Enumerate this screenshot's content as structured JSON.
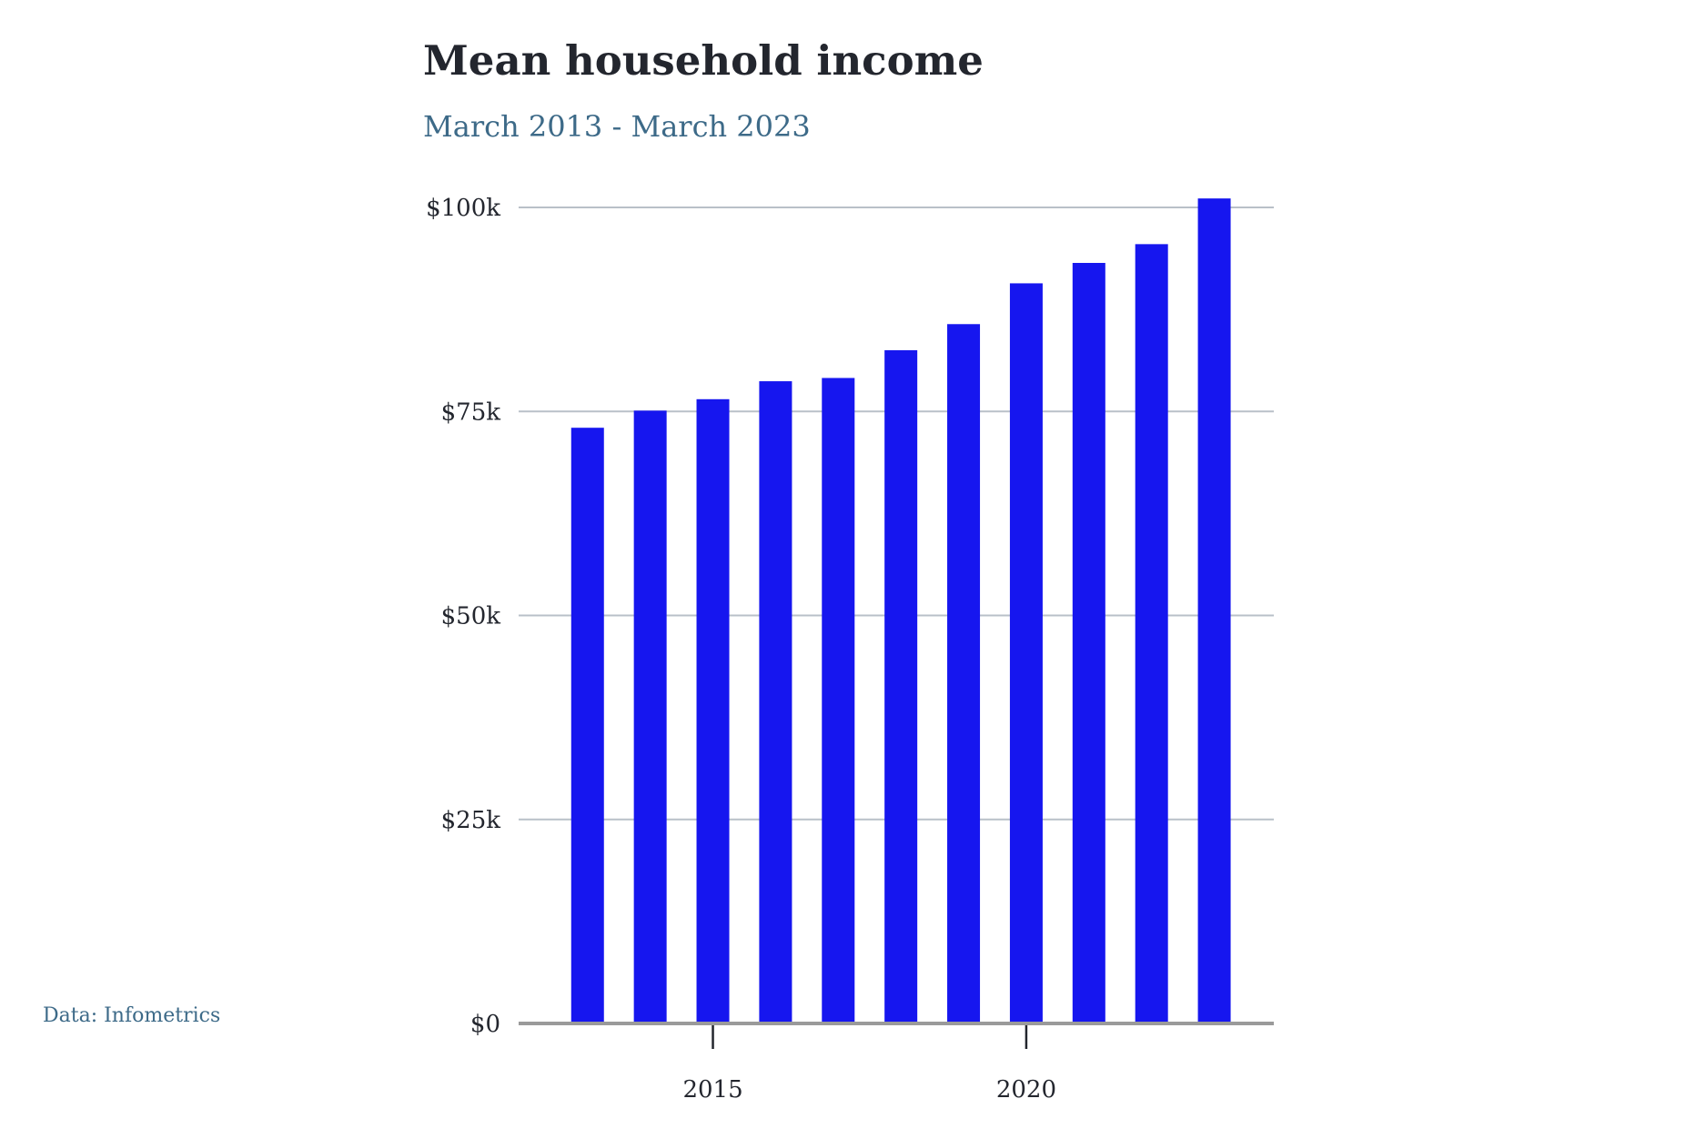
{
  "source": "Data: Infometrics",
  "colors": {
    "bar": "#1616ef",
    "grid": "#b9c0c8",
    "baseline": "#9a9a9a",
    "title": "#23262e",
    "subtitle": "#3d6a88",
    "tick": "#23262e"
  },
  "chart_data": {
    "type": "bar",
    "title": "Mean household income",
    "subtitle": "March 2013 - March 2023",
    "xlabel": "",
    "ylabel": "",
    "x": [
      2013,
      2014,
      2015,
      2016,
      2017,
      2018,
      2019,
      2020,
      2021,
      2022,
      2023
    ],
    "values": [
      73000,
      75100,
      76500,
      78700,
      79100,
      82500,
      85700,
      90700,
      93200,
      95500,
      101100
    ],
    "ylim": [
      0,
      100000
    ],
    "xlim": [
      2011.9,
      2023.95
    ],
    "y_ticks": [
      0,
      25000,
      50000,
      75000,
      100000
    ],
    "y_tick_labels": [
      "$0",
      "$25k",
      "$50k",
      "$75k",
      "$100k"
    ],
    "x_ticks": [
      2015,
      2020
    ],
    "x_tick_labels": [
      "2015",
      "2020"
    ],
    "grid": "horizontal",
    "legend": "none"
  }
}
